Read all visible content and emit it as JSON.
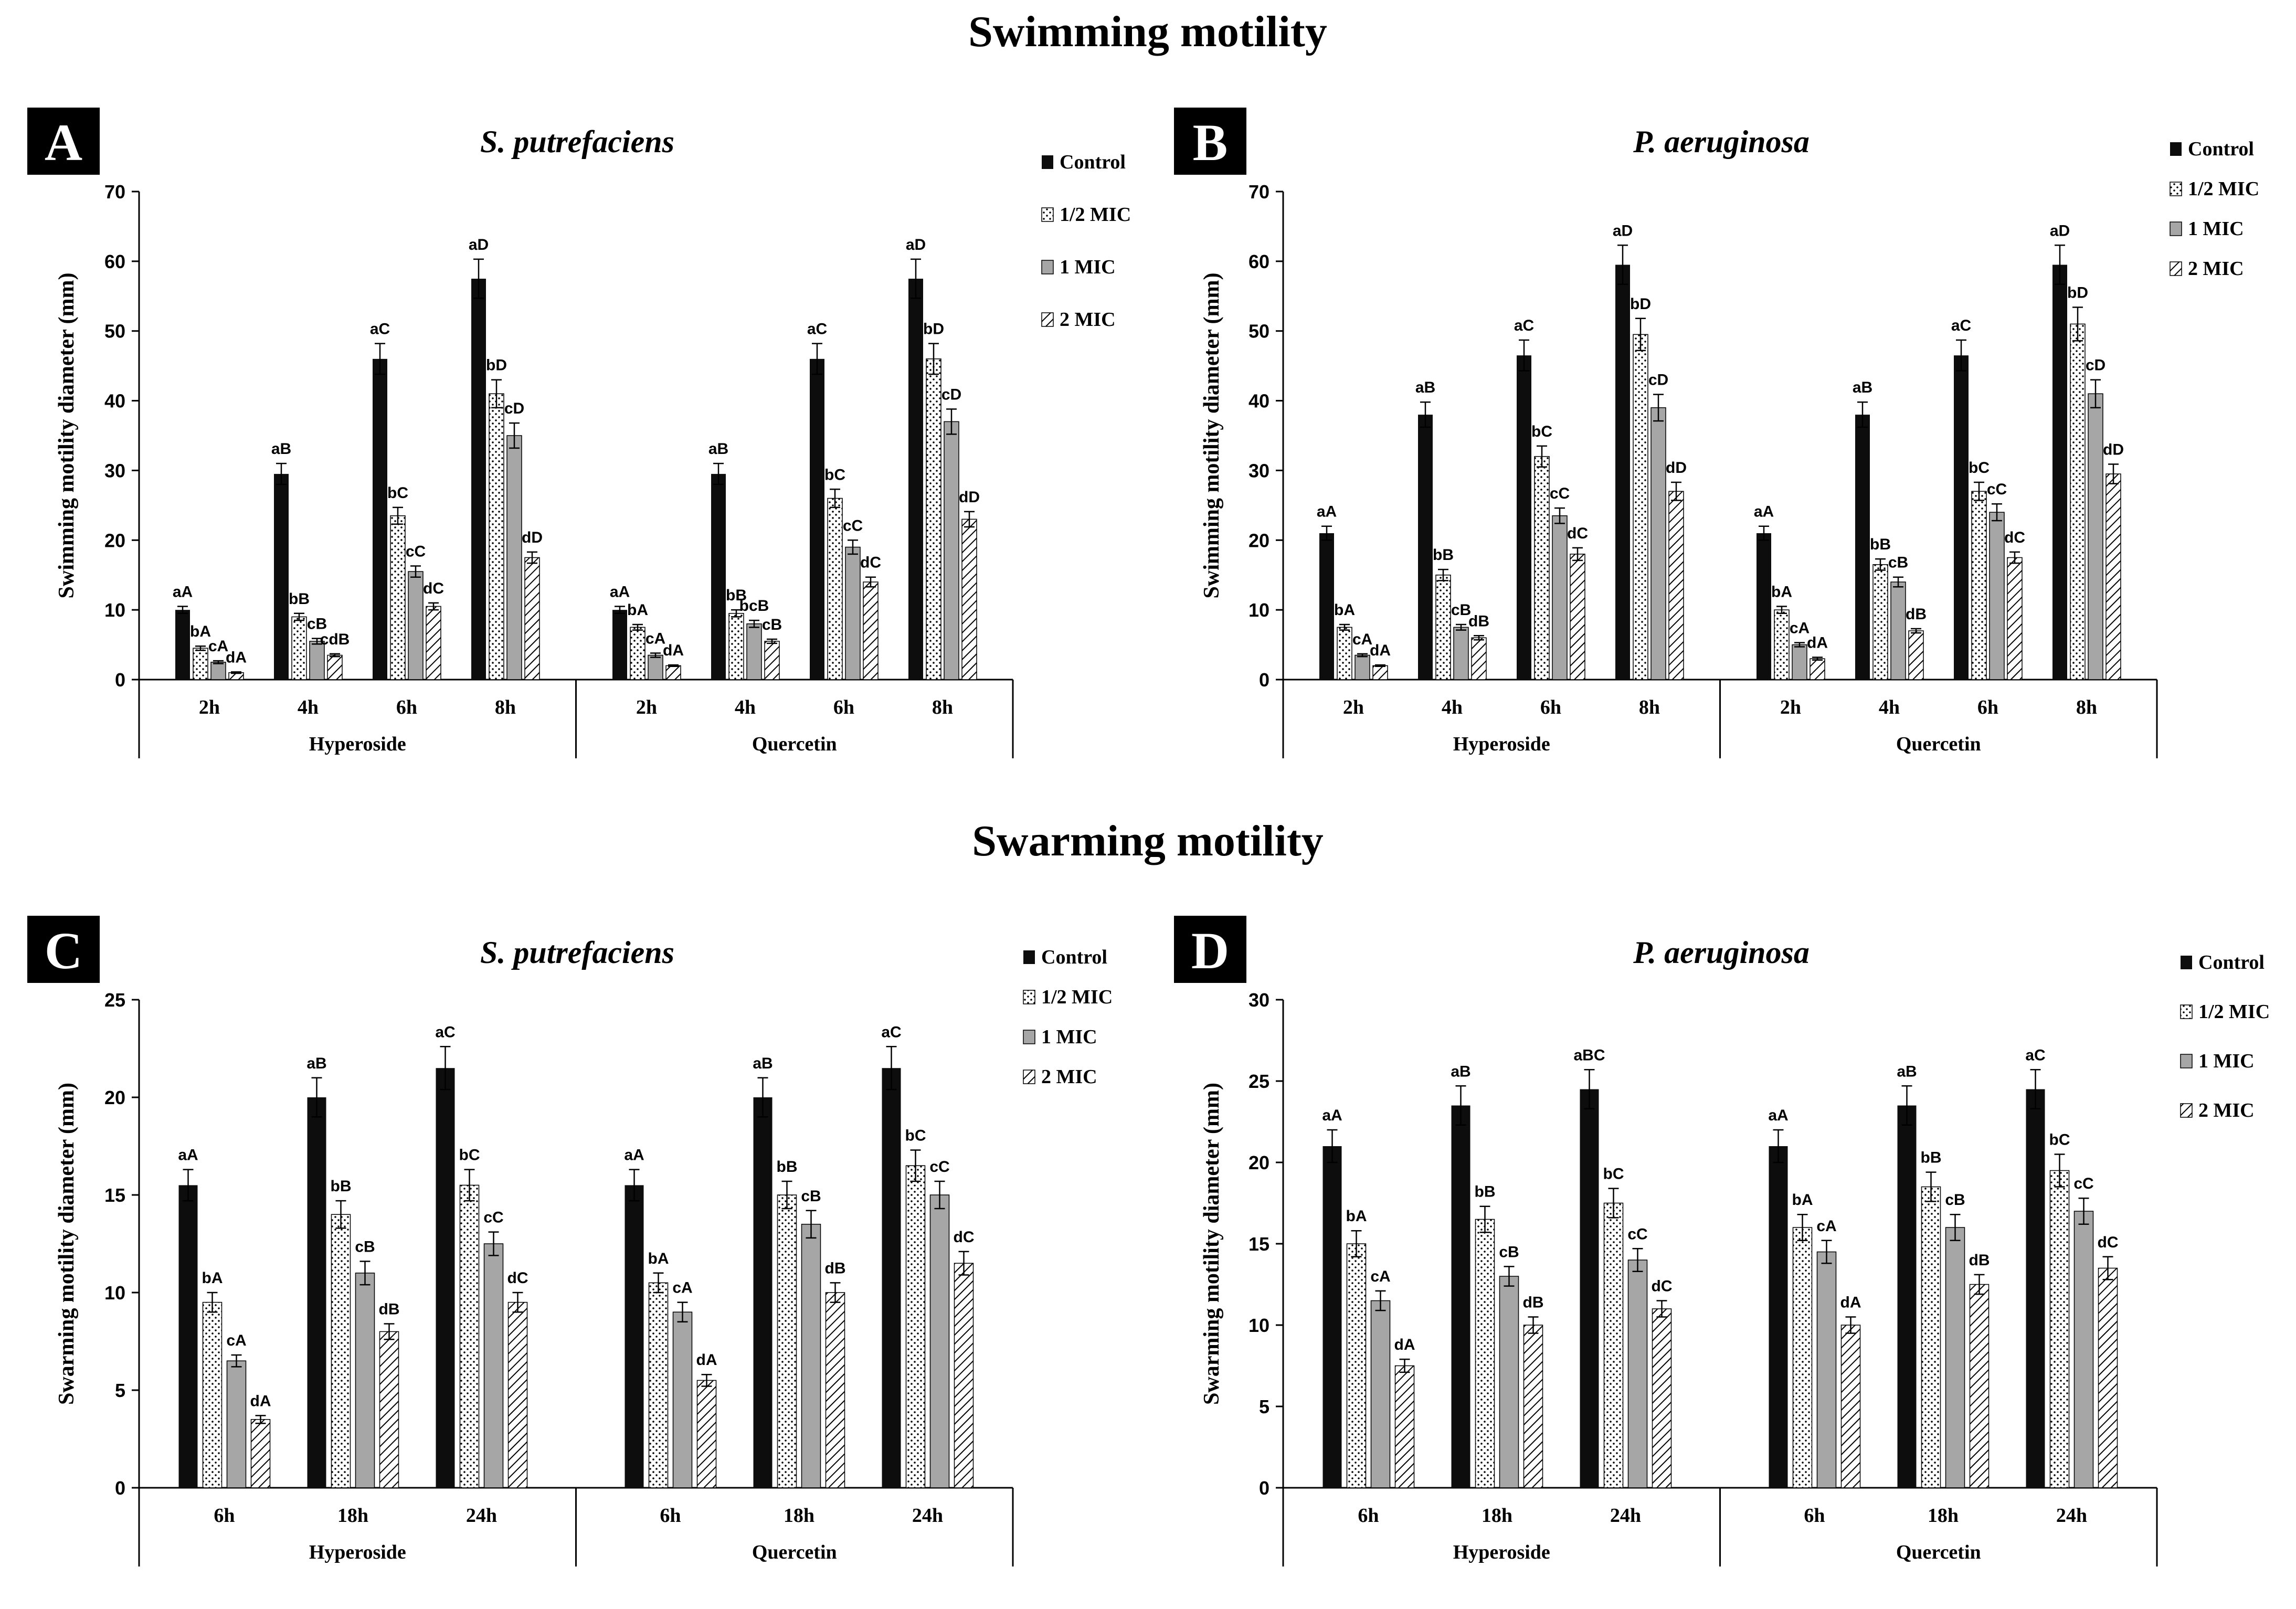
{
  "section_titles": {
    "swimming": "Swimming motility",
    "swarming": "Swarming motility"
  },
  "colors": {
    "control": "#0d0d0d",
    "half_mic": "#ffffff",
    "one_mic": "#a6a6a6",
    "two_mic": "#ffffff",
    "text": "#000000",
    "panel_label_bg": "#000000",
    "panel_label_fg": "#ffffff"
  },
  "chart_data": [
    {
      "type": "bar",
      "panel": "A",
      "title": "S. putrefaciens",
      "ylabel": "Swimming motility diameter (mm)",
      "ylim": [
        0,
        70
      ],
      "yticks": [
        0,
        10,
        20,
        30,
        40,
        50,
        60,
        70
      ],
      "groups": [
        "Hyperoside",
        "Quercetin"
      ],
      "categories": [
        "2h",
        "4h",
        "6h",
        "8h"
      ],
      "legend": [
        "Control",
        "1/2 MIC",
        "1 MIC",
        "2 MIC"
      ],
      "series": [
        {
          "name": "Control",
          "group": "Hyperoside",
          "values": [
            10,
            29.5,
            46,
            57.5
          ],
          "errors": [
            0.5,
            1.5,
            2.2,
            2.8
          ],
          "labels": [
            "aA",
            "aB",
            "aC",
            "aD"
          ]
        },
        {
          "name": "1/2 MIC",
          "group": "Hyperoside",
          "values": [
            4.5,
            9,
            23.5,
            41
          ],
          "errors": [
            0.3,
            0.5,
            1.2,
            2
          ],
          "labels": [
            "bA",
            "bB",
            "bC",
            "bD"
          ]
        },
        {
          "name": "1 MIC",
          "group": "Hyperoside",
          "values": [
            2.5,
            5.5,
            15.5,
            35
          ],
          "errors": [
            0.2,
            0.4,
            0.8,
            1.8
          ],
          "labels": [
            "cA",
            "cB",
            "cC",
            "cD"
          ]
        },
        {
          "name": "2 MIC",
          "group": "Hyperoside",
          "values": [
            1,
            3.5,
            10.5,
            17.5
          ],
          "errors": [
            0.1,
            0.2,
            0.5,
            0.8
          ],
          "labels": [
            "dA",
            "cdB",
            "dC",
            "dD"
          ]
        },
        {
          "name": "Control",
          "group": "Quercetin",
          "values": [
            10,
            29.5,
            46,
            57.5
          ],
          "errors": [
            0.5,
            1.5,
            2.2,
            2.8
          ],
          "labels": [
            "aA",
            "aB",
            "aC",
            "aD"
          ]
        },
        {
          "name": "1/2 MIC",
          "group": "Quercetin",
          "values": [
            7.5,
            9.5,
            26,
            46
          ],
          "errors": [
            0.4,
            0.5,
            1.3,
            2.2
          ],
          "labels": [
            "bA",
            "bB",
            "bC",
            "bD"
          ]
        },
        {
          "name": "1 MIC",
          "group": "Quercetin",
          "values": [
            3.5,
            8,
            19,
            37
          ],
          "errors": [
            0.3,
            0.5,
            1,
            1.8
          ],
          "labels": [
            "cA",
            "bcB",
            "cC",
            "cD"
          ]
        },
        {
          "name": "2 MIC",
          "group": "Quercetin",
          "values": [
            2,
            5.5,
            14,
            23
          ],
          "errors": [
            0.1,
            0.3,
            0.7,
            1.1
          ],
          "labels": [
            "dA",
            "cB",
            "dC",
            "dD"
          ]
        }
      ]
    },
    {
      "type": "bar",
      "panel": "B",
      "title": "P. aeruginosa",
      "ylabel": "Swimming motility diameter (mm)",
      "ylim": [
        0,
        70
      ],
      "yticks": [
        0,
        10,
        20,
        30,
        40,
        50,
        60,
        70
      ],
      "groups": [
        "Hyperoside",
        "Quercetin"
      ],
      "categories": [
        "2h",
        "4h",
        "6h",
        "8h"
      ],
      "legend": [
        "Control",
        "1/2 MIC",
        "1 MIC",
        "2 MIC"
      ],
      "series": [
        {
          "name": "Control",
          "group": "Hyperoside",
          "values": [
            21,
            38,
            46.5,
            59.5
          ],
          "errors": [
            1,
            1.8,
            2.2,
            2.8
          ],
          "labels": [
            "aA",
            "aB",
            "aC",
            "aD"
          ]
        },
        {
          "name": "1/2 MIC",
          "group": "Hyperoside",
          "values": [
            7.5,
            15,
            32,
            49.5
          ],
          "errors": [
            0.4,
            0.8,
            1.5,
            2.3
          ],
          "labels": [
            "bA",
            "bB",
            "bC",
            "bD"
          ]
        },
        {
          "name": "1 MIC",
          "group": "Hyperoside",
          "values": [
            3.5,
            7.5,
            23.5,
            39
          ],
          "errors": [
            0.2,
            0.4,
            1.1,
            1.9
          ],
          "labels": [
            "cA",
            "cB",
            "cC",
            "cD"
          ]
        },
        {
          "name": "2 MIC",
          "group": "Hyperoside",
          "values": [
            2,
            6,
            18,
            27
          ],
          "errors": [
            0.1,
            0.3,
            0.9,
            1.3
          ],
          "labels": [
            "dA",
            "dB",
            "dC",
            "dD"
          ]
        },
        {
          "name": "Control",
          "group": "Quercetin",
          "values": [
            21,
            38,
            46.5,
            59.5
          ],
          "errors": [
            1,
            1.8,
            2.2,
            2.8
          ],
          "labels": [
            "aA",
            "aB",
            "aC",
            "aD"
          ]
        },
        {
          "name": "1/2 MIC",
          "group": "Quercetin",
          "values": [
            10,
            16.5,
            27,
            51
          ],
          "errors": [
            0.5,
            0.8,
            1.3,
            2.4
          ],
          "labels": [
            "bA",
            "bB",
            "bC",
            "bD"
          ]
        },
        {
          "name": "1 MIC",
          "group": "Quercetin",
          "values": [
            5,
            14,
            24,
            41
          ],
          "errors": [
            0.3,
            0.7,
            1.2,
            2
          ],
          "labels": [
            "cA",
            "cB",
            "cC",
            "cD"
          ]
        },
        {
          "name": "2 MIC",
          "group": "Quercetin",
          "values": [
            3,
            7,
            17.5,
            29.5
          ],
          "errors": [
            0.2,
            0.3,
            0.8,
            1.4
          ],
          "labels": [
            "dA",
            "dB",
            "dC",
            "dD"
          ]
        }
      ]
    },
    {
      "type": "bar",
      "panel": "C",
      "title": "S. putrefaciens",
      "ylabel": "Swarming motility diameter (mm)",
      "ylim": [
        0,
        25
      ],
      "yticks": [
        0,
        5,
        10,
        15,
        20,
        25
      ],
      "groups": [
        "Hyperoside",
        "Quercetin"
      ],
      "categories": [
        "6h",
        "18h",
        "24h"
      ],
      "legend": [
        "Control",
        "1/2 MIC",
        "1 MIC",
        "2 MIC"
      ],
      "series": [
        {
          "name": "Control",
          "group": "Hyperoside",
          "values": [
            15.5,
            20,
            21.5
          ],
          "errors": [
            0.8,
            1,
            1.1
          ],
          "labels": [
            "aA",
            "aB",
            "aC"
          ]
        },
        {
          "name": "1/2 MIC",
          "group": "Hyperoside",
          "values": [
            9.5,
            14,
            15.5
          ],
          "errors": [
            0.5,
            0.7,
            0.8
          ],
          "labels": [
            "bA",
            "bB",
            "bC"
          ]
        },
        {
          "name": "1 MIC",
          "group": "Hyperoside",
          "values": [
            6.5,
            11,
            12.5
          ],
          "errors": [
            0.3,
            0.6,
            0.6
          ],
          "labels": [
            "cA",
            "cB",
            "cC"
          ]
        },
        {
          "name": "2 MIC",
          "group": "Hyperoside",
          "values": [
            3.5,
            8,
            9.5
          ],
          "errors": [
            0.2,
            0.4,
            0.5
          ],
          "labels": [
            "dA",
            "dB",
            "dC"
          ]
        },
        {
          "name": "Control",
          "group": "Quercetin",
          "values": [
            15.5,
            20,
            21.5
          ],
          "errors": [
            0.8,
            1,
            1.1
          ],
          "labels": [
            "aA",
            "aB",
            "aC"
          ]
        },
        {
          "name": "1/2 MIC",
          "group": "Quercetin",
          "values": [
            10.5,
            15,
            16.5
          ],
          "errors": [
            0.5,
            0.7,
            0.8
          ],
          "labels": [
            "bA",
            "bB",
            "bC"
          ]
        },
        {
          "name": "1 MIC",
          "group": "Quercetin",
          "values": [
            9,
            13.5,
            15
          ],
          "errors": [
            0.5,
            0.7,
            0.7
          ],
          "labels": [
            "cA",
            "cB",
            "cC"
          ]
        },
        {
          "name": "2 MIC",
          "group": "Quercetin",
          "values": [
            5.5,
            10,
            11.5
          ],
          "errors": [
            0.3,
            0.5,
            0.6
          ],
          "labels": [
            "dA",
            "dB",
            "dC"
          ]
        }
      ]
    },
    {
      "type": "bar",
      "panel": "D",
      "title": "P. aeruginosa",
      "ylabel": "Swarming motility diameter (mm)",
      "ylim": [
        0,
        30
      ],
      "yticks": [
        0,
        5,
        10,
        15,
        20,
        25,
        30
      ],
      "groups": [
        "Hyperoside",
        "Quercetin"
      ],
      "categories": [
        "6h",
        "18h",
        "24h"
      ],
      "legend": [
        "Control",
        "1/2 MIC",
        "1 MIC",
        "2 MIC"
      ],
      "series": [
        {
          "name": "Control",
          "group": "Hyperoside",
          "values": [
            21,
            23.5,
            24.5
          ],
          "errors": [
            1,
            1.2,
            1.2
          ],
          "labels": [
            "aA",
            "aB",
            "aBC"
          ]
        },
        {
          "name": "1/2 MIC",
          "group": "Hyperoside",
          "values": [
            15,
            16.5,
            17.5
          ],
          "errors": [
            0.8,
            0.8,
            0.9
          ],
          "labels": [
            "bA",
            "bB",
            "bC"
          ]
        },
        {
          "name": "1 MIC",
          "group": "Hyperoside",
          "values": [
            11.5,
            13,
            14
          ],
          "errors": [
            0.6,
            0.6,
            0.7
          ],
          "labels": [
            "cA",
            "cB",
            "cC"
          ]
        },
        {
          "name": "2 MIC",
          "group": "Hyperoside",
          "values": [
            7.5,
            10,
            11
          ],
          "errors": [
            0.4,
            0.5,
            0.5
          ],
          "labels": [
            "dA",
            "dB",
            "dC"
          ]
        },
        {
          "name": "Control",
          "group": "Quercetin",
          "values": [
            21,
            23.5,
            24.5
          ],
          "errors": [
            1,
            1.2,
            1.2
          ],
          "labels": [
            "aA",
            "aB",
            "aC"
          ]
        },
        {
          "name": "1/2 MIC",
          "group": "Quercetin",
          "values": [
            16,
            18.5,
            19.5
          ],
          "errors": [
            0.8,
            0.9,
            1
          ],
          "labels": [
            "bA",
            "bB",
            "bC"
          ]
        },
        {
          "name": "1 MIC",
          "group": "Quercetin",
          "values": [
            14.5,
            16,
            17
          ],
          "errors": [
            0.7,
            0.8,
            0.8
          ],
          "labels": [
            "cA",
            "cB",
            "cC"
          ]
        },
        {
          "name": "2 MIC",
          "group": "Quercetin",
          "values": [
            10,
            12.5,
            13.5
          ],
          "errors": [
            0.5,
            0.6,
            0.7
          ],
          "labels": [
            "dA",
            "dB",
            "dC"
          ]
        }
      ]
    }
  ]
}
